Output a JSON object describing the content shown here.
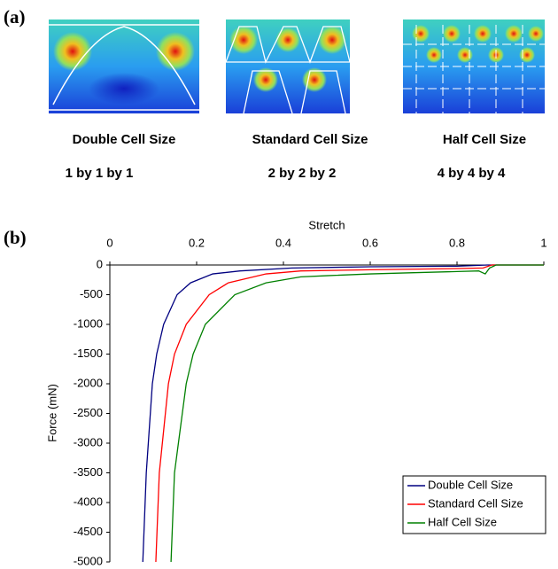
{
  "panel_a": {
    "label": "(a)",
    "items": [
      {
        "name": "Double Cell Size",
        "dims": "1 by 1 by 1"
      },
      {
        "name": "Standard Cell Size",
        "dims": "2 by 2 by 2"
      },
      {
        "name": "Half Cell Size",
        "dims": "4 by 4 by 4"
      }
    ]
  },
  "chart_data": {
    "type": "line",
    "panel_label": "(b)",
    "x_label": "Stretch",
    "y_label": "Force (mN)",
    "xlim": [
      0,
      1
    ],
    "xticks": [
      0,
      0.2,
      0.4,
      0.6,
      0.8,
      1
    ],
    "ylim": [
      -5000,
      0
    ],
    "yticks": [
      0,
      -500,
      -1000,
      -1500,
      -2000,
      -2500,
      -3000,
      -3500,
      -4000,
      -4500,
      -5000
    ],
    "legend": "lower right",
    "series": [
      {
        "name": "Double Cell Size",
        "color": "#000080",
        "x": [
          0.076,
          0.084,
          0.098,
          0.108,
          0.124,
          0.155,
          0.186,
          0.237,
          0.3,
          0.42,
          0.6,
          0.8,
          0.87,
          1
        ],
        "values": [
          -5000,
          -3500,
          -2000,
          -1500,
          -1000,
          -500,
          -300,
          -150,
          -100,
          -50,
          -30,
          -20,
          0,
          0
        ]
      },
      {
        "name": "Standard Cell Size",
        "color": "#ff0000",
        "x": [
          0.106,
          0.114,
          0.135,
          0.149,
          0.176,
          0.229,
          0.273,
          0.36,
          0.44,
          0.6,
          0.8,
          0.86,
          0.88,
          1
        ],
        "values": [
          -5000,
          -3500,
          -2000,
          -1500,
          -1000,
          -500,
          -300,
          -150,
          -100,
          -80,
          -60,
          -50,
          0,
          0
        ]
      },
      {
        "name": "Half Cell Size",
        "color": "#008000",
        "x": [
          0.141,
          0.149,
          0.176,
          0.192,
          0.22,
          0.288,
          0.36,
          0.44,
          0.5,
          0.6,
          0.7,
          0.8,
          0.85,
          0.865,
          0.875,
          0.89,
          1
        ],
        "values": [
          -5000,
          -3500,
          -2000,
          -1500,
          -1000,
          -500,
          -300,
          -200,
          -180,
          -150,
          -130,
          -110,
          -100,
          -150,
          -50,
          0,
          0
        ]
      }
    ]
  }
}
